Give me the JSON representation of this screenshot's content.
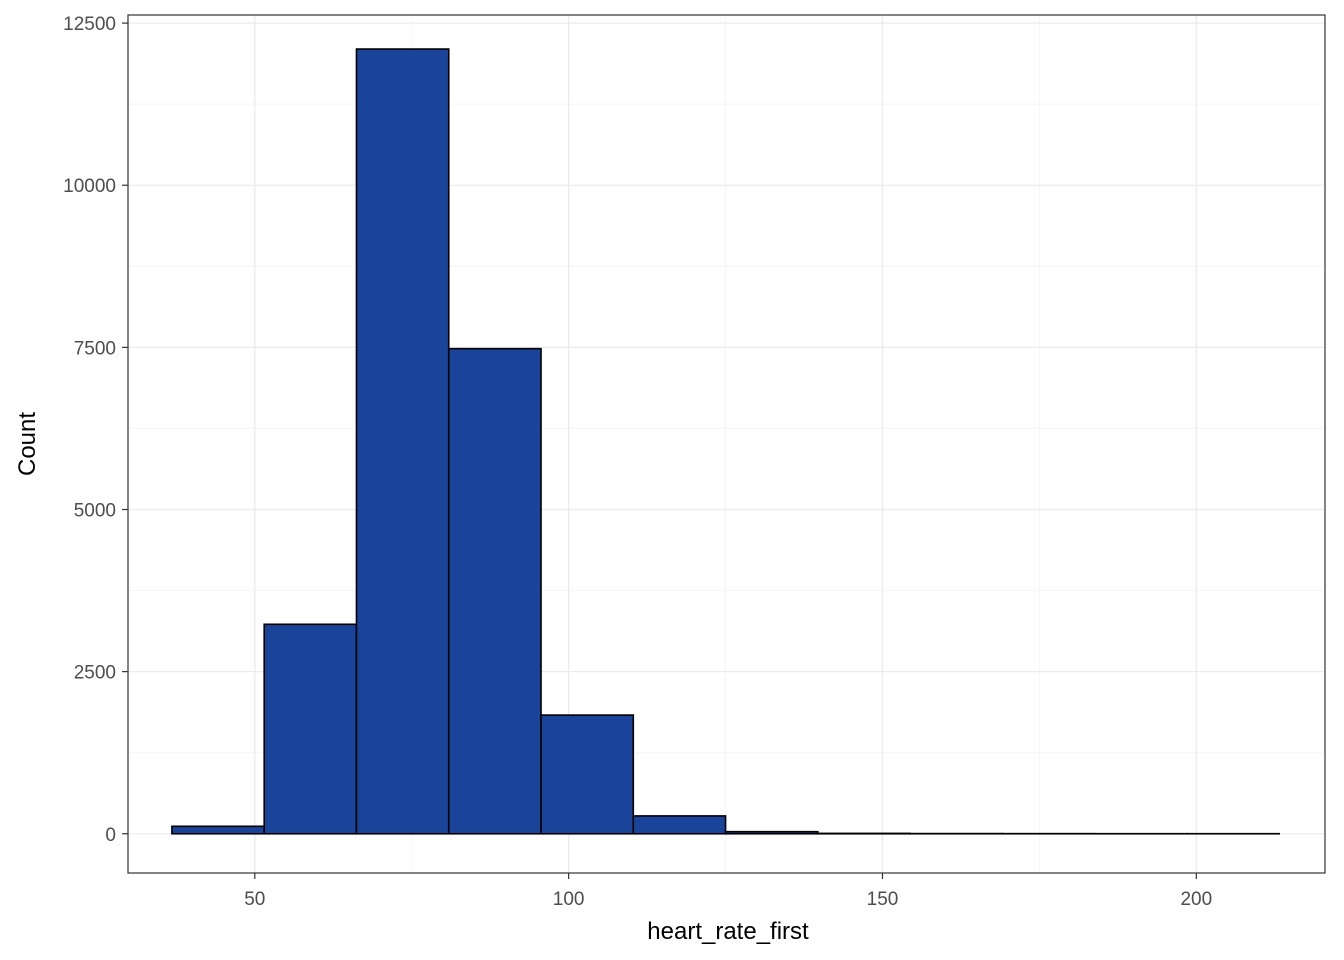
{
  "chart_data": {
    "type": "bar",
    "title": "",
    "xlabel": "heart_rate_first",
    "ylabel": "Count",
    "xlim": [
      29.8,
      220.5
    ],
    "ylim": [
      -605,
      12625
    ],
    "x_ticks": [
      50,
      100,
      150,
      200
    ],
    "x_tick_labels": [
      "50",
      "100",
      "150",
      "200"
    ],
    "y_ticks": [
      0,
      2500,
      5000,
      7500,
      10000,
      12500
    ],
    "y_tick_labels": [
      "0",
      "2500",
      "5000",
      "7500",
      "10000",
      "12500"
    ],
    "grid": true,
    "bin_edges": [
      36.8,
      51.5,
      66.2,
      80.9,
      95.6,
      110.3,
      125.0,
      139.7,
      154.4,
      169.1,
      183.8,
      198.5,
      213.2
    ],
    "counts": [
      115,
      3230,
      12100,
      7480,
      1830,
      275,
      32,
      6,
      3,
      2,
      1,
      1
    ],
    "colors": {
      "bar_fill": "#19449A",
      "bar_stroke": "#000000",
      "grid_major": "#EBEBEB",
      "grid_minor": "#F5F5F5",
      "panel_border": "#333333",
      "tick_text": "#4D4D4D",
      "title_text": "#000000"
    }
  }
}
